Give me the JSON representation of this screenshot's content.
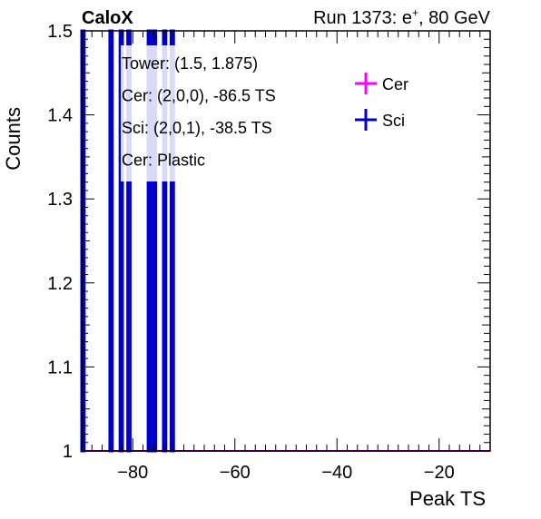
{
  "header": {
    "left": "CaloX",
    "right_prefix": "Run 1373: e",
    "right_sup": "+",
    "right_suffix": ", 80 GeV"
  },
  "annotations": [
    "Tower: (1.5, 1.875)",
    "Cer: (2,0,0), -86.5 TS",
    "Sci: (2,0,1), -38.5 TS",
    "Cer: Plastic"
  ],
  "chart_data": {
    "type": "histogram",
    "xlabel": "Peak TS",
    "ylabel": "Counts",
    "xlim": [
      -90,
      -10
    ],
    "ylim": [
      1.0,
      1.5
    ],
    "xticks": [
      -80,
      -60,
      -40,
      -20
    ],
    "xtick_labels": [
      "−80",
      "−60",
      "−40",
      "−20"
    ],
    "yticks": [
      1.0,
      1.1,
      1.2,
      1.3,
      1.4,
      1.5
    ],
    "ytick_labels": [
      "1",
      "1.1",
      "1.2",
      "1.3",
      "1.4",
      "1.5"
    ],
    "grid": false,
    "legend": {
      "placement": "top-right"
    },
    "series": [
      {
        "name": "Cer",
        "color": "#ff00ff",
        "bins": [],
        "baseline": 1.0
      },
      {
        "name": "Sci",
        "color": "#0000cc",
        "bins": [
          {
            "x0": -90.0,
            "x1": -89.5,
            "count": 2
          },
          {
            "x0": -84.5,
            "x1": -84.0,
            "count": 2
          },
          {
            "x0": -82.5,
            "x1": -82.0,
            "count": 2
          },
          {
            "x0": -81.0,
            "x1": -80.5,
            "count": 2
          },
          {
            "x0": -77.0,
            "x1": -76.5,
            "count": 2
          },
          {
            "x0": -76.0,
            "x1": -75.5,
            "count": 2
          },
          {
            "x0": -74.0,
            "x1": -73.5,
            "count": 2
          },
          {
            "x0": -72.5,
            "x1": -72.0,
            "count": 2
          }
        ]
      }
    ]
  }
}
